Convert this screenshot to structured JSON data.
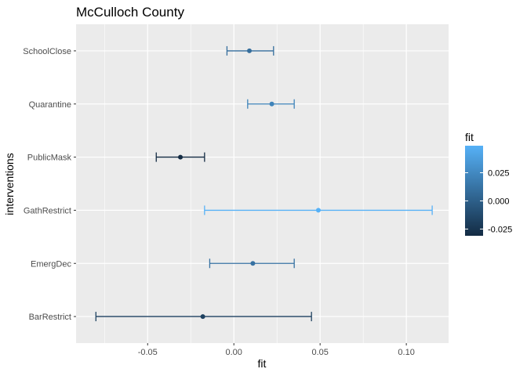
{
  "chart_data": {
    "type": "errorbar",
    "title": "McCulloch County",
    "xlabel": "fit",
    "ylabel": "interventions",
    "xlim": [
      -0.0915,
      0.1245
    ],
    "x_ticks": [
      -0.05,
      0.0,
      0.05,
      0.1
    ],
    "x_tick_labels": [
      "-0.05",
      "0.00",
      "0.05",
      "0.10"
    ],
    "grid": true,
    "categories": [
      "SchoolClose",
      "Quarantine",
      "PublicMask",
      "GathRestrict",
      "EmergDec",
      "BarRestrict"
    ],
    "points": [
      {
        "label": "SchoolClose",
        "fit": 0.009,
        "lower": -0.004,
        "upper": 0.023
      },
      {
        "label": "Quarantine",
        "fit": 0.022,
        "lower": 0.008,
        "upper": 0.035
      },
      {
        "label": "PublicMask",
        "fit": -0.031,
        "lower": -0.045,
        "upper": -0.017
      },
      {
        "label": "GathRestrict",
        "fit": 0.049,
        "lower": -0.017,
        "upper": 0.115
      },
      {
        "label": "EmergDec",
        "fit": 0.011,
        "lower": -0.014,
        "upper": 0.035
      },
      {
        "label": "BarRestrict",
        "fit": -0.018,
        "lower": -0.08,
        "upper": 0.045
      }
    ],
    "legend": {
      "title": "fit",
      "position": "right",
      "ticks": [
        0.025,
        0.0,
        -0.025
      ],
      "tick_labels": [
        "0.025",
        "0.000",
        "-0.025"
      ],
      "range": [
        -0.031,
        0.049
      ],
      "colors": [
        "#132b43",
        "#56b1f7"
      ]
    },
    "panel_color": "#ebebeb",
    "grid_color": "#ffffff"
  }
}
